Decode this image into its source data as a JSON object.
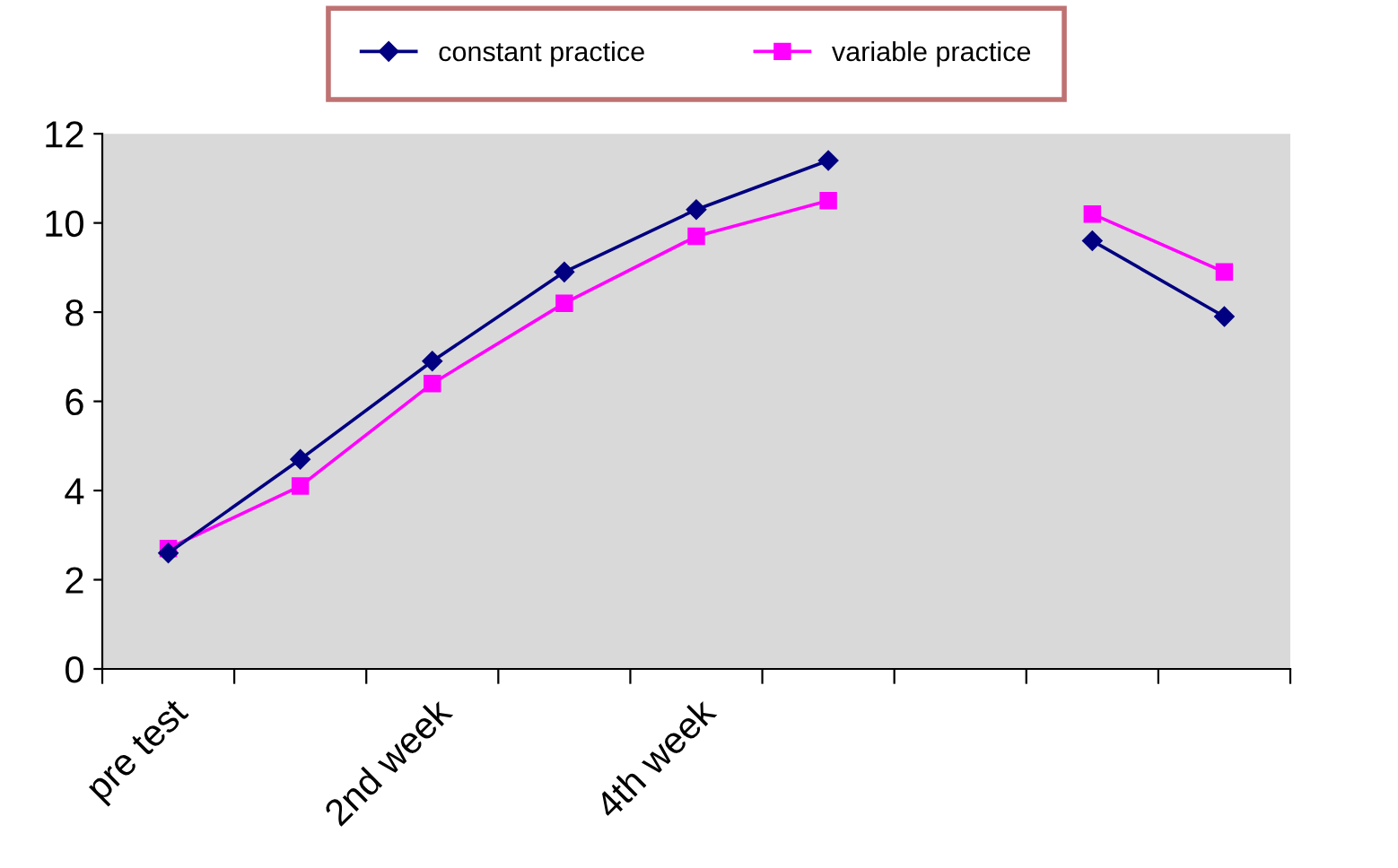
{
  "chart_data": {
    "type": "line",
    "categories": [
      "pre test",
      null,
      "2nd week",
      null,
      "4th week",
      null,
      null,
      null,
      null
    ],
    "series": [
      {
        "name": "constant practice",
        "color": "#000080",
        "marker": "diamond",
        "values": [
          2.6,
          4.7,
          6.9,
          8.9,
          10.3,
          11.4,
          null,
          9.6,
          7.9
        ]
      },
      {
        "name": "variable practice",
        "color": "#ff00ff",
        "marker": "square",
        "values": [
          2.7,
          4.1,
          6.4,
          8.2,
          9.7,
          10.5,
          null,
          10.2,
          8.9
        ]
      }
    ],
    "ylim": [
      0,
      12
    ],
    "yticks": [
      0,
      2,
      4,
      6,
      8,
      10,
      12
    ],
    "grid": false,
    "legend": "top",
    "line_style": "solid"
  }
}
